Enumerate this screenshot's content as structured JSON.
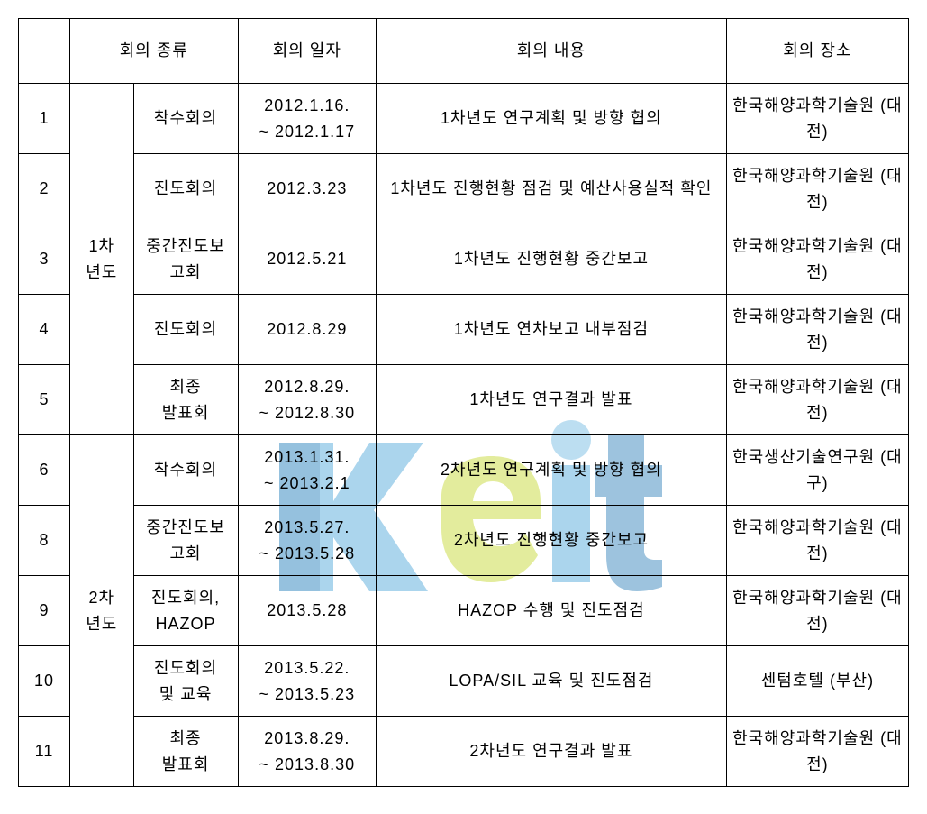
{
  "headers": {
    "type": "회의 종류",
    "date": "회의 일자",
    "content": "회의 내용",
    "location": "회의 장소"
  },
  "yearGroups": {
    "year1": "1차\n년도",
    "year2": "2차\n년도"
  },
  "rows": [
    {
      "num": "1",
      "type": "착수회의",
      "date": "2012.1.16.\n~ 2012.1.17",
      "content": "1차년도 연구계획 및 방향 협의",
      "location": "한국해양과학기술원 (대전)"
    },
    {
      "num": "2",
      "type": "진도회의",
      "date": "2012.3.23",
      "content": "1차년도 진행현황 점검 및 예산사용실적 확인",
      "location": "한국해양과학기술원 (대전)"
    },
    {
      "num": "3",
      "type": "중간진도보고회",
      "date": "2012.5.21",
      "content": "1차년도 진행현황 중간보고",
      "location": "한국해양과학기술원 (대전)"
    },
    {
      "num": "4",
      "type": "진도회의",
      "date": "2012.8.29",
      "content": "1차년도 연차보고 내부점검",
      "location": "한국해양과학기술원 (대전)"
    },
    {
      "num": "5",
      "type": "최종\n발표회",
      "date": "2012.8.29.\n~ 2012.8.30",
      "content": "1차년도 연구결과 발표",
      "location": "한국해양과학기술원 (대전)"
    },
    {
      "num": "6",
      "type": "착수회의",
      "date": "2013.1.31.\n~ 2013.2.1",
      "content": "2차년도 연구계획 및 방향 협의",
      "location": "한국생산기술연구원 (대구)"
    },
    {
      "num": "8",
      "type": "중간진도보고회",
      "date": "2013.5.27.\n~ 2013.5.28",
      "content": "2차년도 진행현황 중간보고",
      "location": "한국해양과학기술원 (대전)"
    },
    {
      "num": "9",
      "type": "진도회의,\nHAZOP",
      "date": "2013.5.28",
      "content": "HAZOP 수행 및 진도점검",
      "location": "한국해양과학기술원 (대전)"
    },
    {
      "num": "10",
      "type": "진도회의\n및 교육",
      "date": "2013.5.22.\n~ 2013.5.23",
      "content": "LOPA/SIL 교육 및 진도점검",
      "location": "센텀호텔 (부산)"
    },
    {
      "num": "11",
      "type": "최종\n발표회",
      "date": "2013.8.29.\n~ 2013.8.30",
      "content": "2차년도 연구결과 발표",
      "location": "한국해양과학기술원 (대전)"
    }
  ],
  "watermark": {
    "text": "Keit",
    "colors": {
      "k_top": "#4aa3d8",
      "k_mid": "#2e7fb8",
      "e": "#c8d93a",
      "i": "#4aa3d8",
      "i_dot": "#6fb8e0",
      "t": "#2e7fb8"
    }
  }
}
